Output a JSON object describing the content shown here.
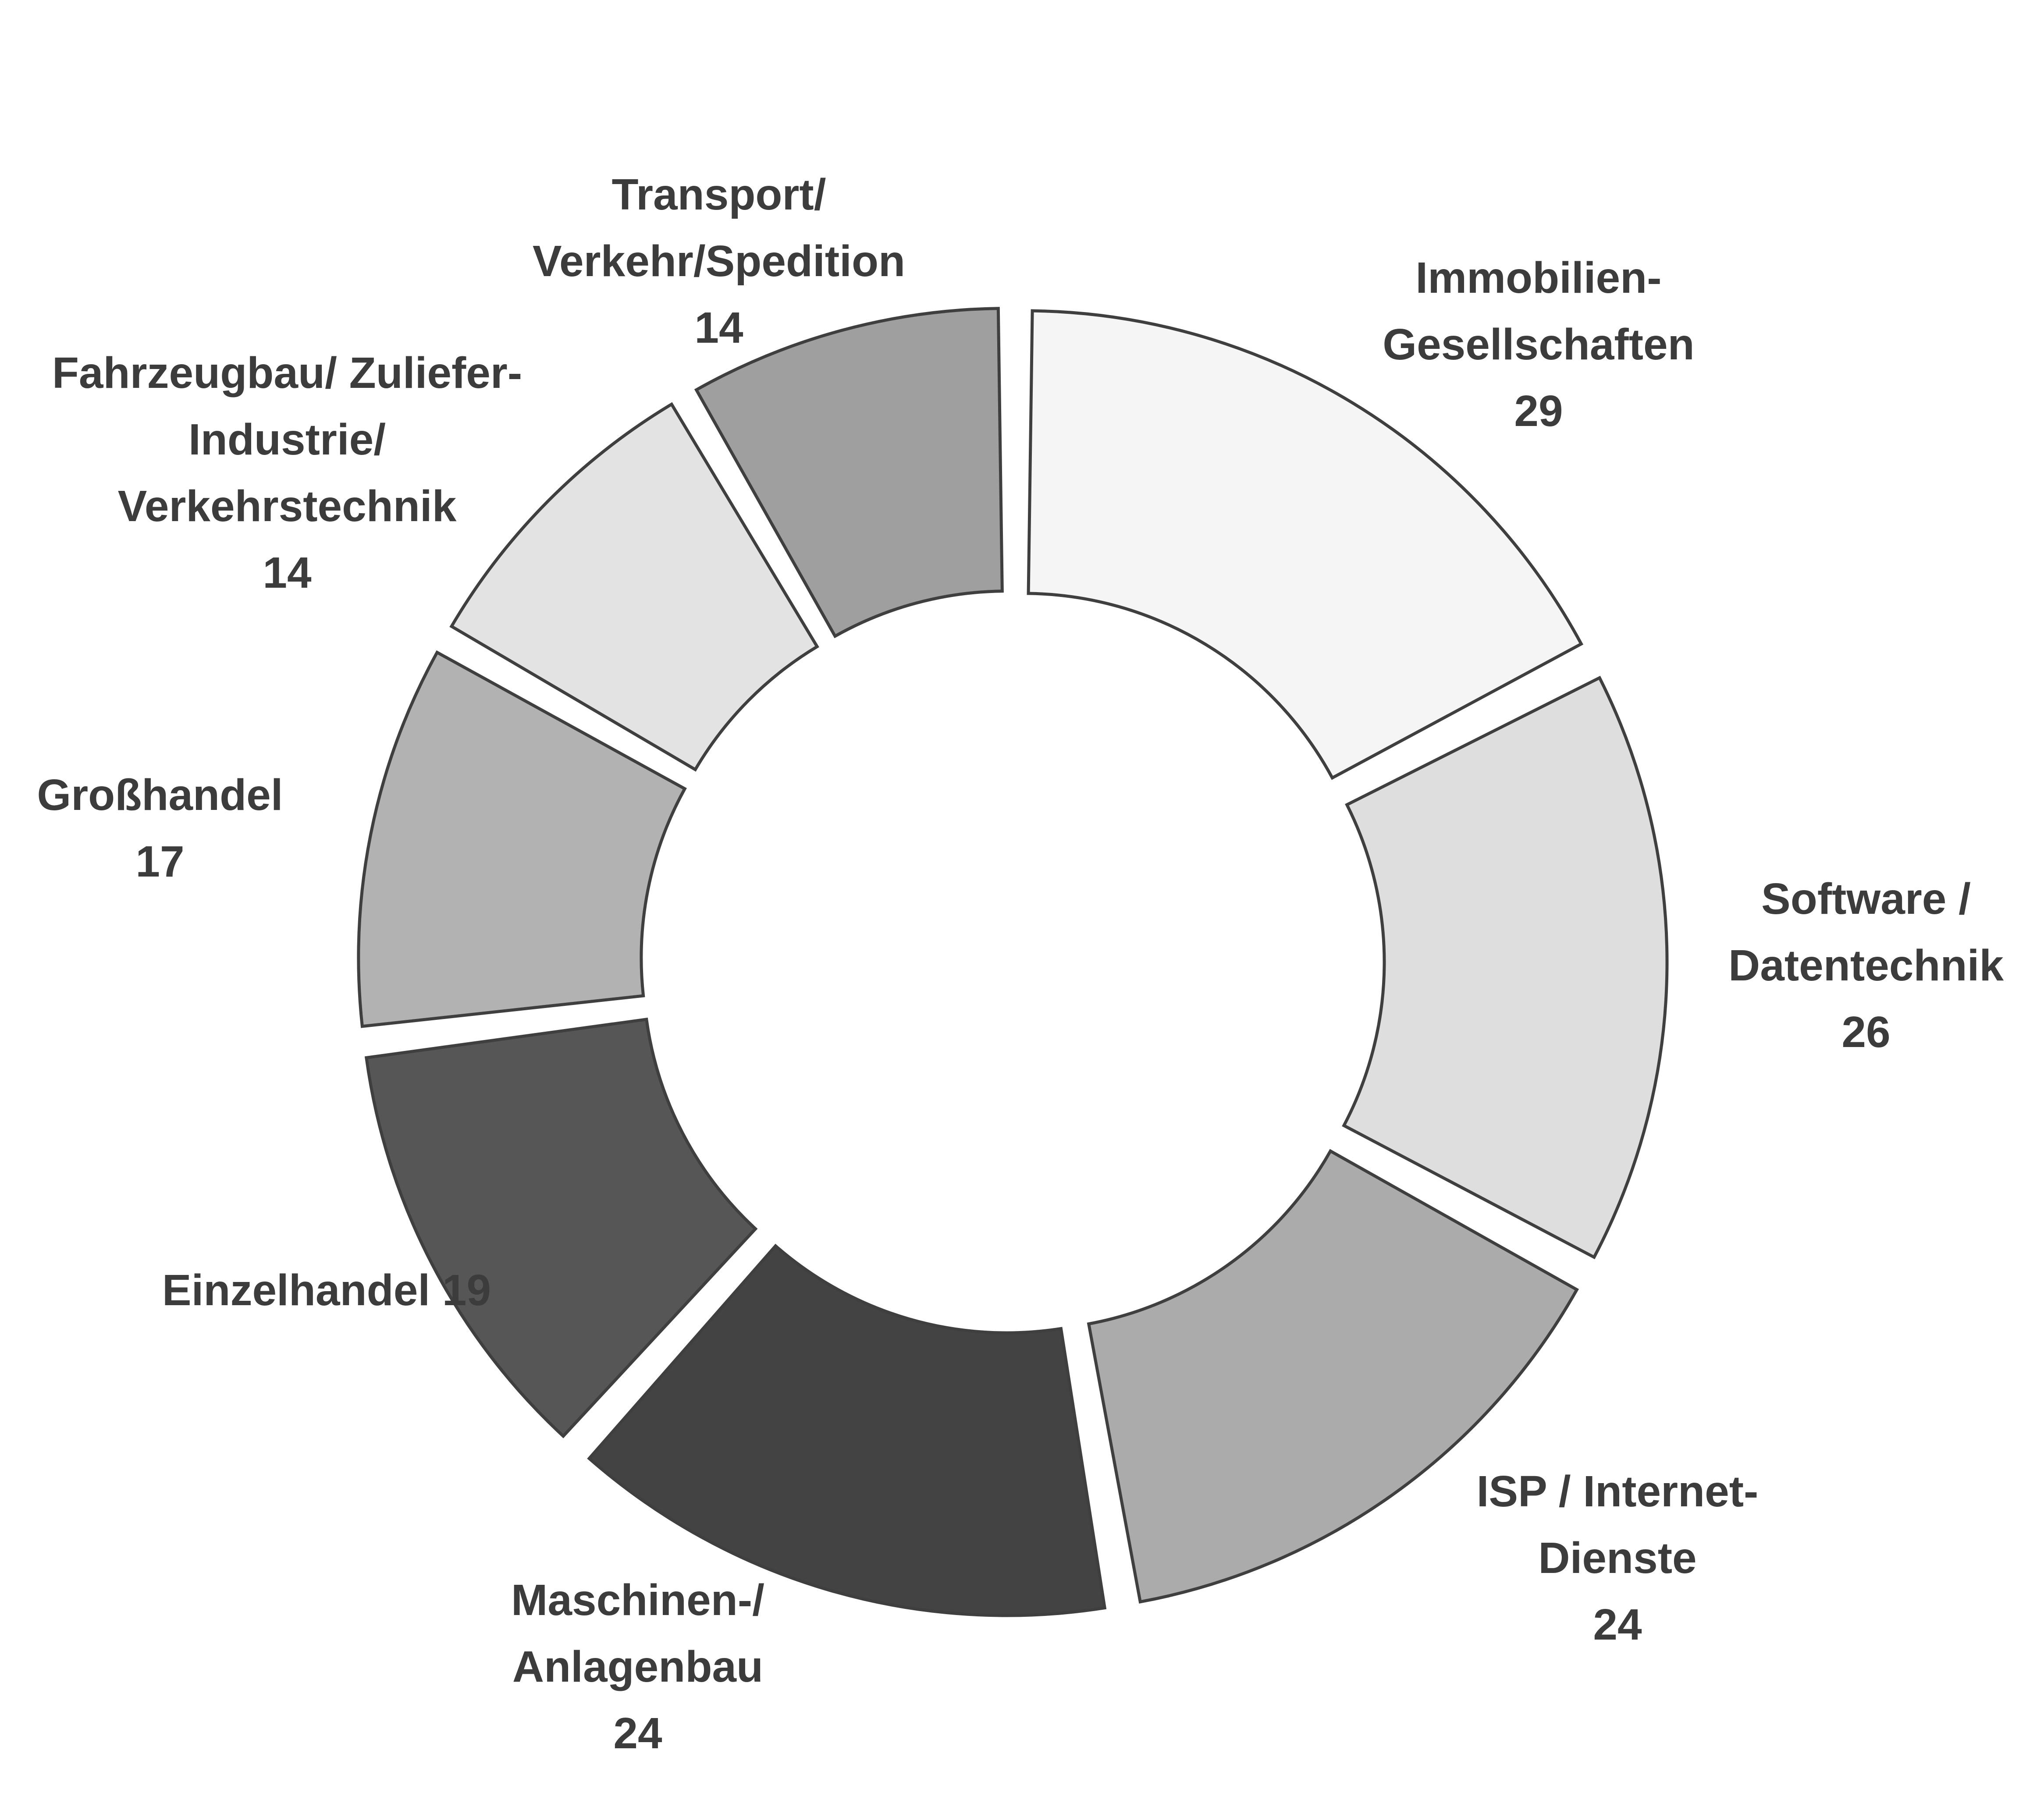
{
  "chart_data": {
    "type": "pie",
    "variant": "donut",
    "title": "",
    "categories": [
      "Immobilien-Gesellschaften",
      "Software / Datentechnik",
      "ISP / Internet-Dienste",
      "Maschinen-/ Anlagenbau",
      "Einzelhandel",
      "Großhandel",
      "Fahrzeugbau/ Zuliefer-Industrie/ Verkehrstechnik",
      "Transport/ Verkehr/Spedition"
    ],
    "values": [
      29,
      26,
      24,
      24,
      19,
      17,
      14,
      14
    ],
    "colors": [
      "#f5f5f5",
      "#dedede",
      "#ababab",
      "#434343",
      "#565656",
      "#b2b2b2",
      "#e3e3e3",
      "#9f9f9f"
    ],
    "labels": [
      [
        "Immobilien-",
        "Gesellschaften",
        "29"
      ],
      [
        "Software /",
        "Datentechnik",
        "26"
      ],
      [
        "ISP / Internet-",
        "Dienste",
        "24"
      ],
      [
        "Maschinen-/",
        "Anlagenbau",
        "24"
      ],
      [
        "Einzelhandel 19"
      ],
      [
        "Großhandel",
        "17"
      ],
      [
        "Fahrzeugbau/ Zuliefer-",
        "Industrie/",
        "Verkehrstechnik",
        "14"
      ],
      [
        "Transport/",
        "Verkehr/Spedition",
        "14"
      ]
    ],
    "legend": "none"
  }
}
